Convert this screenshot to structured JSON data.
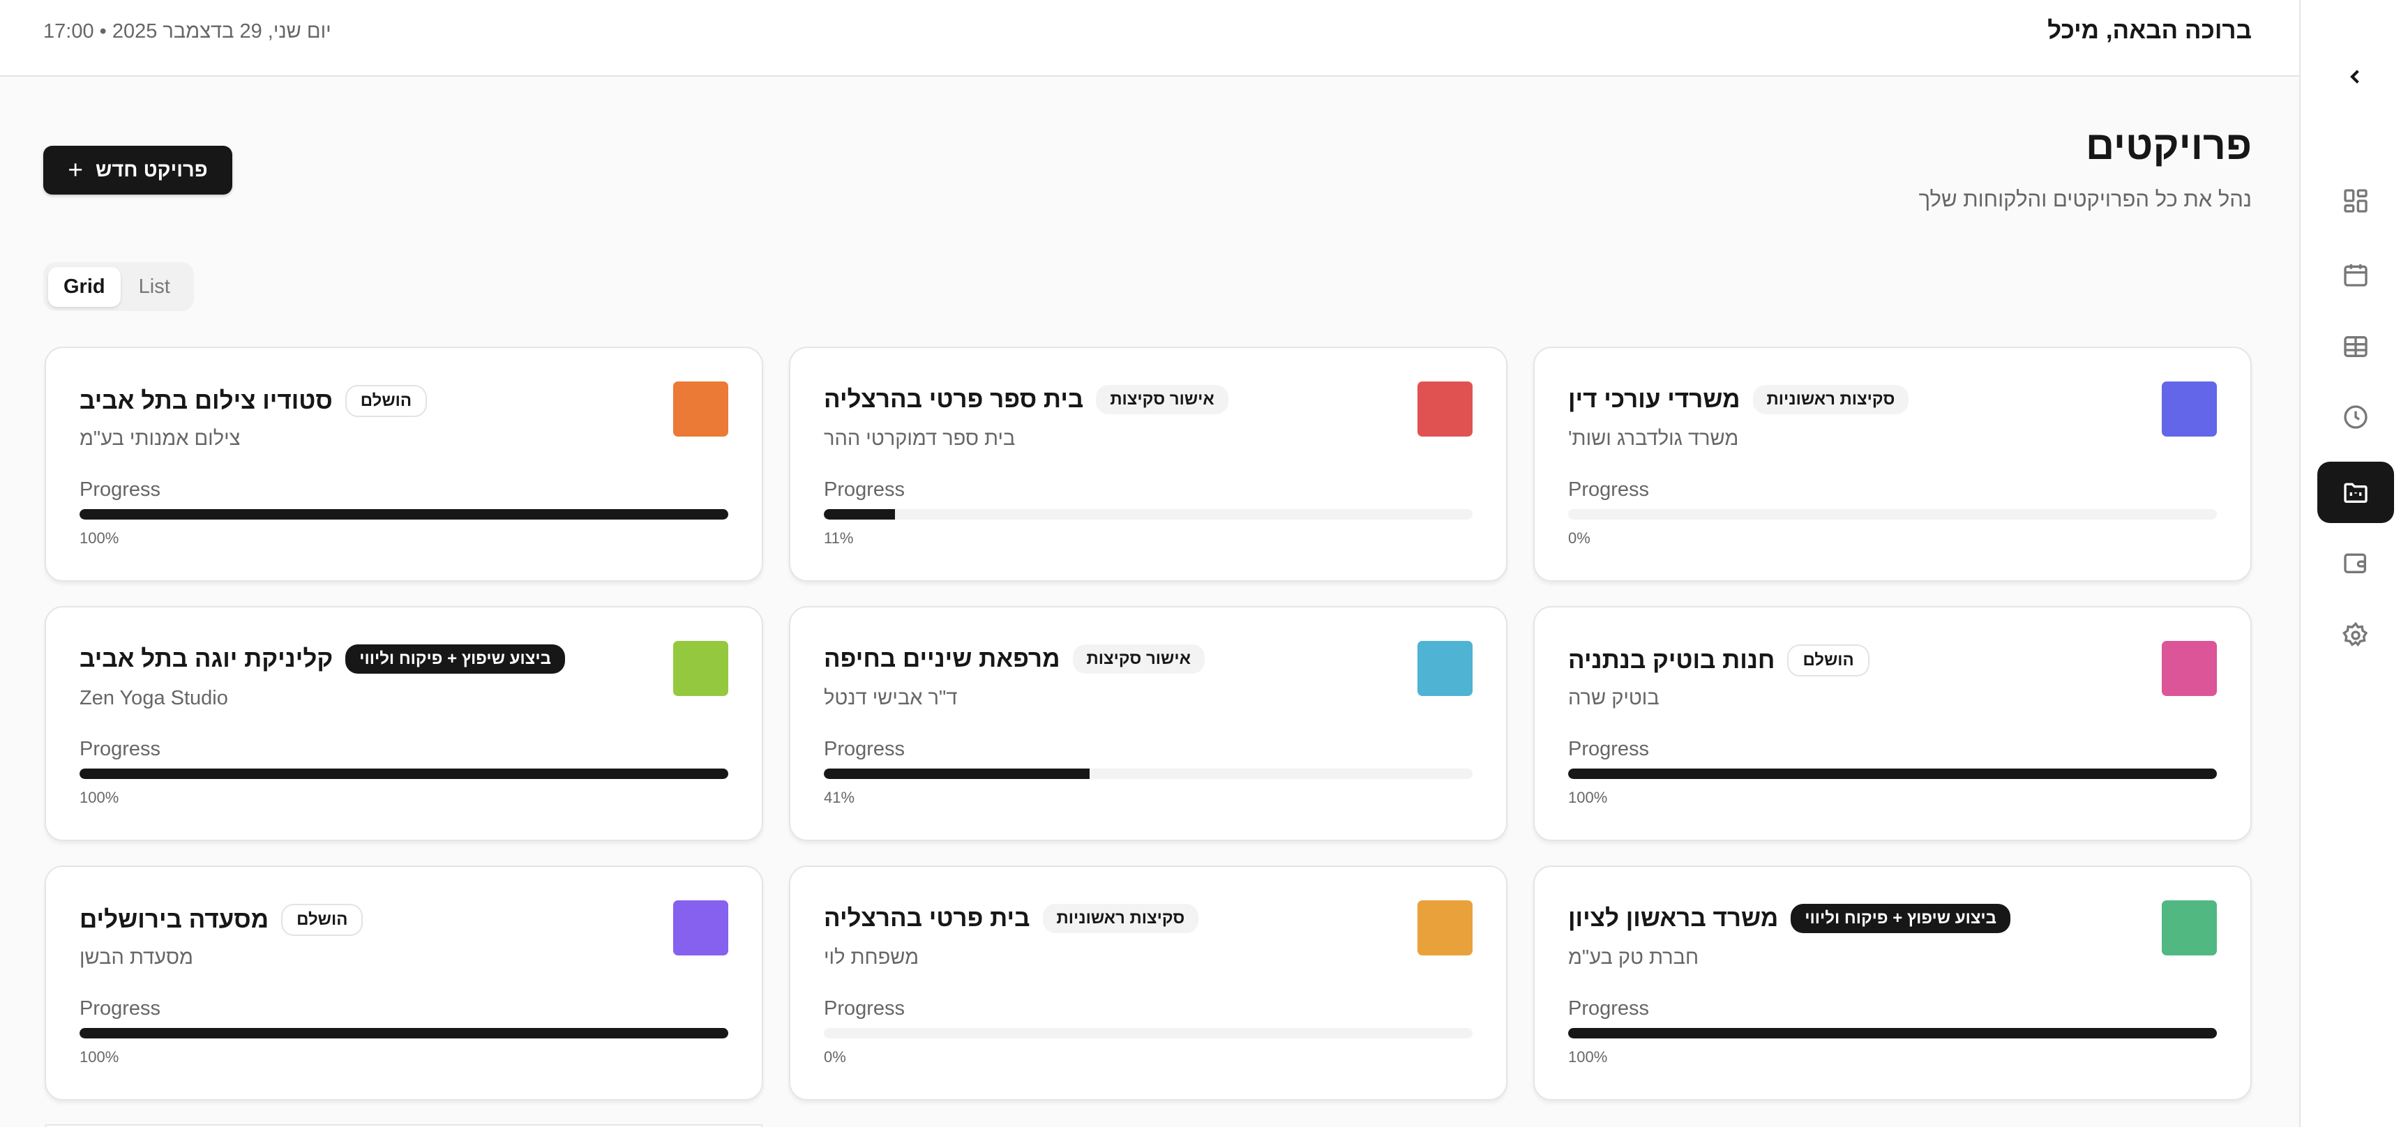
{
  "header": {
    "greeting": "ברוכה הבאה, מיכל",
    "date": "יום שני, 29 בדצמבר 2025 • 17:00"
  },
  "page": {
    "title": "פרויקטים",
    "subtitle": "נהל את כל הפרויקטים והלקוחות שלך",
    "new_project_label": "פרויקט חדש",
    "view_toggle": {
      "grid": "Grid",
      "list": "List",
      "selected": "Grid"
    }
  },
  "sidebar": {
    "items": [
      {
        "icon": "dashboard-icon"
      },
      {
        "icon": "calendar-icon"
      },
      {
        "icon": "table-icon"
      },
      {
        "icon": "clock-icon"
      },
      {
        "icon": "folder-icon",
        "active": true
      },
      {
        "icon": "wallet-icon"
      },
      {
        "icon": "gear-icon"
      }
    ]
  },
  "progress_label": "Progress",
  "projects": [
    {
      "title": "משרדי עורכי דין",
      "client": "משרד גולדברג ושות'",
      "status": "סקיצות ראשוניות",
      "status_style": "light",
      "progress": 0,
      "progress_text": "0%",
      "color": "#6366e8"
    },
    {
      "title": "בית ספר פרטי בהרצליה",
      "client": "בית ספר דמוקרטי ההר",
      "status": "אישור סקיצות",
      "status_style": "light",
      "progress": 11,
      "progress_text": "11%",
      "color": "#e05252"
    },
    {
      "title": "סטודיו צילום בתל אביב",
      "client": "צילום אמנותי בע\"מ",
      "status": "הושלם",
      "status_style": "outline",
      "progress": 100,
      "progress_text": "100%",
      "color": "#ea7a35"
    },
    {
      "title": "חנות בוטיק בנתניה",
      "client": "בוטיק שרה",
      "status": "הושלם",
      "status_style": "outline",
      "progress": 100,
      "progress_text": "100%",
      "color": "#db5598"
    },
    {
      "title": "מרפאת שיניים בחיפה",
      "client": "ד\"ר אבישי דנטל",
      "status": "אישור סקיצות",
      "status_style": "light",
      "progress": 41,
      "progress_text": "41%",
      "color": "#4fb3d3"
    },
    {
      "title": "קליניקת יוגה בתל אביב",
      "client": "Zen Yoga Studio",
      "status": "ביצוע שיפוץ + פיקוח וליווי",
      "status_style": "dark",
      "progress": 100,
      "progress_text": "100%",
      "color": "#94c83f"
    },
    {
      "title": "משרד בראשון לציון",
      "client": "חברת טק בע\"מ",
      "status": "ביצוע שיפוץ + פיקוח וליווי",
      "status_style": "dark",
      "progress": 100,
      "progress_text": "100%",
      "color": "#52b882"
    },
    {
      "title": "בית פרטי בהרצליה",
      "client": "משפחת לוי",
      "status": "סקיצות ראשוניות",
      "status_style": "light",
      "progress": 0,
      "progress_text": "0%",
      "color": "#e9a23b"
    },
    {
      "title": "מסעדה בירושלים",
      "client": "מסעדת הבשן",
      "status": "הושלם",
      "status_style": "outline",
      "progress": 100,
      "progress_text": "100%",
      "color": "#8660ee"
    }
  ]
}
